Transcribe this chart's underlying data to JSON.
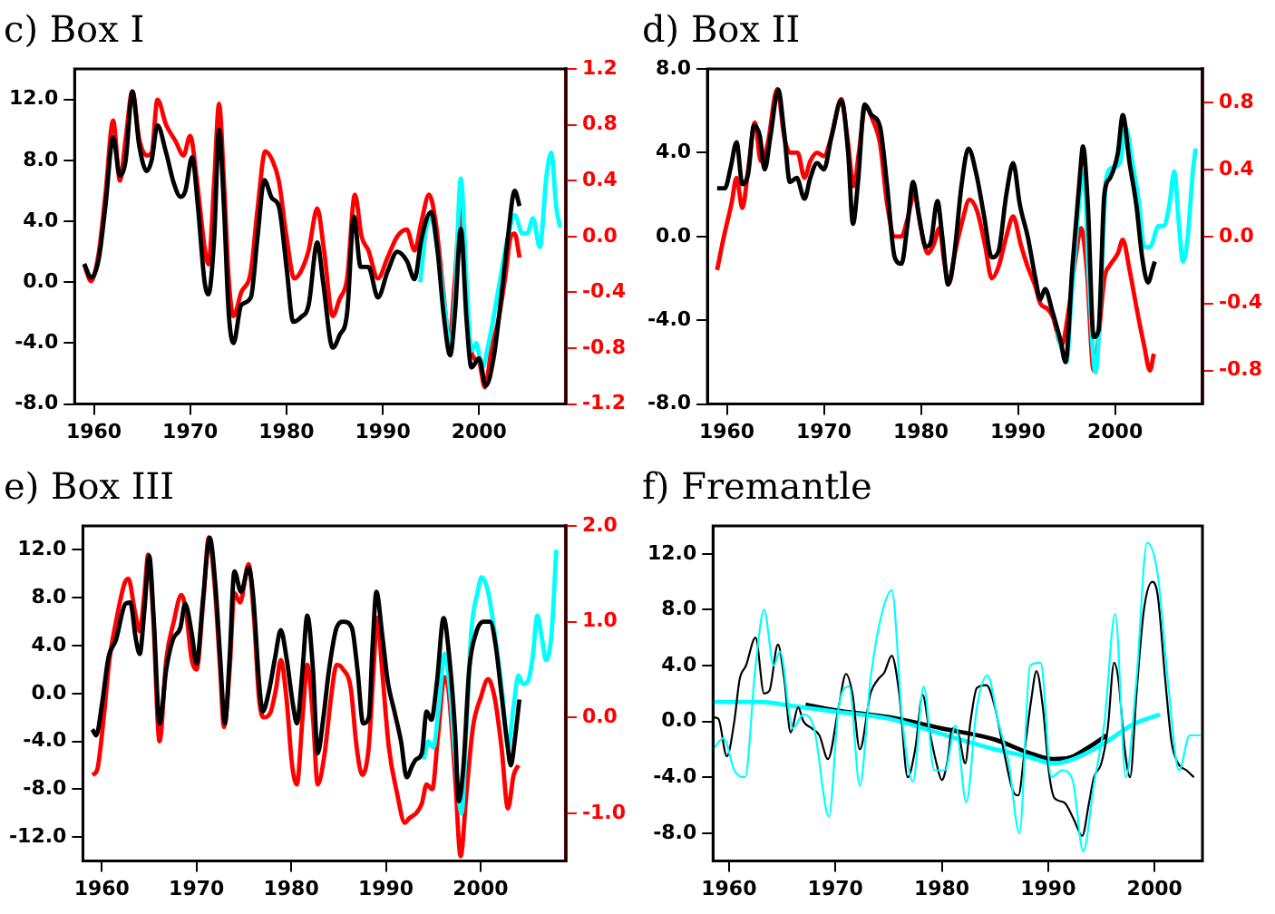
{
  "chart_data": [
    {
      "type": "line",
      "title": "c) Box I",
      "xlim": [
        1958,
        2009
      ],
      "xticks": [
        1960,
        1970,
        1980,
        1990,
        2000
      ],
      "ylim": [
        -8,
        14
      ],
      "yticks": [
        {
          "value": -8,
          "label": "-8.0"
        },
        {
          "value": -4,
          "label": "-4.0"
        },
        {
          "value": 0,
          "label": "0.0"
        },
        {
          "value": 4,
          "label": "4.0"
        },
        {
          "value": 8,
          "label": "8.0"
        },
        {
          "value": 12,
          "label": "12.0"
        }
      ],
      "y2lim": [
        -1.2,
        1.2
      ],
      "y2ticks": [
        {
          "value": -1.2,
          "label": "-1.2"
        },
        {
          "value": -0.8,
          "label": "-0.8"
        },
        {
          "value": -0.4,
          "label": "-0.4"
        },
        {
          "value": 0,
          "label": "0.0"
        },
        {
          "value": 0.4,
          "label": "0.4"
        },
        {
          "value": 0.8,
          "label": "0.8"
        },
        {
          "value": 1.2,
          "label": "1.2"
        }
      ],
      "series": [
        {
          "color": "#000000",
          "x": [
            1959.0,
            1959.7,
            1960.5,
            1961.2,
            1962.0,
            1962.7,
            1963.3,
            1964.0,
            1964.7,
            1965.5,
            1966.0,
            1966.6,
            1967.5,
            1968.3,
            1969.0,
            1969.5,
            1970.2,
            1970.8,
            1971.5,
            1971.9,
            1972.5,
            1973.0,
            1973.5,
            1974.0,
            1974.5,
            1975.3,
            1976.3,
            1977.0,
            1977.7,
            1978.5,
            1979.2,
            1980.0,
            1980.7,
            1981.5,
            1982.3,
            1983.2,
            1983.8,
            1984.8,
            1985.5,
            1986.3,
            1987.0,
            1987.7,
            1988.5,
            1989.5,
            1990.5,
            1991.5,
            1992.5,
            1993.3,
            1994.0,
            1995.0,
            1995.7,
            1996.3,
            1997.0,
            1997.5,
            1998.1,
            1998.7,
            1999.2,
            2000.0,
            2000.7,
            2001.5,
            2002.3,
            2003.0,
            2003.7,
            2004.2
          ],
          "values": [
            1.2,
            0.3,
            1.5,
            5,
            9.5,
            7,
            8,
            12.5,
            9,
            7.3,
            8,
            10.3,
            8.5,
            6.5,
            5.6,
            6,
            8.2,
            5,
            0,
            -0.8,
            3,
            10,
            5,
            -2,
            -4,
            -1.5,
            -1,
            3,
            6.7,
            5.5,
            5,
            1,
            -2.6,
            -2.3,
            -1.5,
            2.6,
            0,
            -4.3,
            -3.5,
            -2,
            4.3,
            1,
            1,
            -1,
            0.7,
            2,
            1.4,
            0.2,
            2.8,
            4.6,
            2,
            -2,
            -4.8,
            -2,
            3.5,
            -2.5,
            -5.6,
            -5,
            -6.8,
            -5,
            -1,
            3,
            6,
            5
          ]
        },
        {
          "color": "#00ffff",
          "x": [
            1993.9,
            1994.5,
            1995.0,
            1995.7,
            1996.5,
            1997.0,
            1997.5,
            1998.1,
            1998.7,
            1999.2,
            1999.7,
            2000.3,
            2001.0,
            2002.0,
            2003.0,
            2003.7,
            2004.5,
            2005.0,
            2005.6,
            2006.3,
            2007.0,
            2007.5,
            2008.0,
            2008.4
          ],
          "values": [
            0,
            3.5,
            4.3,
            2,
            -2,
            -4.3,
            -1,
            6.8,
            0,
            -4.5,
            -4,
            -5.6,
            -4,
            -0.5,
            3,
            4.4,
            3.2,
            3.2,
            4.2,
            2.3,
            7,
            8.5,
            5,
            3.6
          ]
        },
        {
          "color": "#ff0000",
          "axis": "y2",
          "x": [
            1959.0,
            1959.7,
            1960.5,
            1961.2,
            1962.0,
            1962.7,
            1963.3,
            1964.0,
            1964.7,
            1965.5,
            1966.0,
            1966.6,
            1967.5,
            1968.5,
            1969.3,
            1970.0,
            1970.7,
            1971.5,
            1971.9,
            1972.5,
            1973.0,
            1973.5,
            1974.0,
            1974.5,
            1975.3,
            1976.3,
            1977.0,
            1977.8,
            1978.5,
            1979.2,
            1980.0,
            1980.8,
            1981.5,
            1982.3,
            1983.2,
            1983.9,
            1984.8,
            1985.5,
            1986.3,
            1987.1,
            1987.8,
            1988.5,
            1989.5,
            1990.5,
            1991.5,
            1992.5,
            1993.3,
            1994.0,
            1994.8,
            1995.5,
            1996.3,
            1996.9,
            1997.5,
            1998.1,
            1998.7,
            1999.3,
            2000.0,
            2000.6,
            2001.3,
            2002.0,
            2002.7,
            2003.3,
            2003.7,
            2004.2
          ],
          "values": [
            -0.2,
            -0.32,
            -0.12,
            0.3,
            0.83,
            0.4,
            0.7,
            1.04,
            0.7,
            0.58,
            0.6,
            0.98,
            0.8,
            0.68,
            0.58,
            0.72,
            0.4,
            -0.08,
            -0.2,
            0.4,
            0.95,
            0.4,
            -0.3,
            -0.57,
            -0.4,
            -0.25,
            0.2,
            0.61,
            0.55,
            0.4,
            0,
            -0.3,
            -0.25,
            -0.1,
            0.2,
            -0.1,
            -0.57,
            -0.45,
            -0.3,
            0.3,
            0,
            -0.1,
            -0.3,
            -0.15,
            0,
            0.05,
            -0.1,
            0.1,
            0.3,
            0.1,
            -0.4,
            -0.75,
            -0.3,
            0.2,
            -0.5,
            -0.85,
            -0.9,
            -1.08,
            -0.8,
            -0.6,
            -0.3,
            0,
            0.02,
            -0.15
          ]
        }
      ]
    },
    {
      "type": "line",
      "title": "d) Box II",
      "xlim": [
        1958,
        2009
      ],
      "xticks": [
        1960,
        1970,
        1980,
        1990,
        2000
      ],
      "ylim": [
        -8,
        8
      ],
      "yticks": [
        {
          "value": -8,
          "label": "-8.0"
        },
        {
          "value": -4,
          "label": "-4.0"
        },
        {
          "value": 0,
          "label": "0.0"
        },
        {
          "value": 4,
          "label": "4.0"
        },
        {
          "value": 8,
          "label": "8.0"
        }
      ],
      "y2lim": [
        -1,
        1
      ],
      "y2ticks": [
        {
          "value": -0.8,
          "label": "-0.8"
        },
        {
          "value": -0.4,
          "label": "-0.4"
        },
        {
          "value": 0,
          "label": "0.0"
        },
        {
          "value": 0.4,
          "label": "0.4"
        },
        {
          "value": 0.8,
          "label": "0.8"
        }
      ],
      "series": [
        {
          "color": "#000000",
          "x": [
            1959.0,
            1959.8,
            1960.4,
            1961.0,
            1961.6,
            1962.2,
            1962.8,
            1963.4,
            1963.9,
            1964.5,
            1965.3,
            1965.9,
            1966.5,
            1967.2,
            1968.0,
            1968.6,
            1969.3,
            1970.0,
            1970.8,
            1971.8,
            1972.5,
            1973.0,
            1973.5,
            1974.2,
            1974.9,
            1975.8,
            1976.5,
            1977.3,
            1978.0,
            1978.6,
            1979.2,
            1979.8,
            1980.5,
            1981.0,
            1981.7,
            1982.2,
            1982.8,
            1983.4,
            1984.2,
            1984.9,
            1985.7,
            1986.5,
            1987.3,
            1988.0,
            1988.8,
            1989.5,
            1990.2,
            1991.0,
            1991.8,
            1992.3,
            1992.8,
            1993.5,
            1994.4,
            1994.9,
            1995.6,
            1996.4,
            1996.7,
            1997.2,
            1997.8,
            1998.3,
            1998.9,
            1999.5,
            2000.3,
            2000.8,
            2001.5,
            2002.2,
            2002.8,
            2003.4,
            2003.9,
            2004.1
          ],
          "values": [
            2.3,
            2.3,
            3.3,
            4.5,
            2.5,
            3,
            5.3,
            4.8,
            3.2,
            4.8,
            7,
            5,
            2.6,
            2.8,
            1.8,
            2.8,
            3.5,
            3.2,
            4.8,
            6.5,
            4,
            0.6,
            2.5,
            6.3,
            5.8,
            5.2,
            2.5,
            -1,
            -1.3,
            0.5,
            2.6,
            1,
            -0.5,
            -0.3,
            1.7,
            0,
            -2.3,
            -1,
            2.5,
            4.2,
            3,
            1,
            -1,
            -0.7,
            2,
            3.5,
            1.5,
            0,
            -2,
            -3,
            -2.5,
            -3.5,
            -5,
            -6,
            -1.5,
            3,
            4.3,
            1.5,
            -4.8,
            -4.5,
            2,
            2.8,
            4,
            5.8,
            3.5,
            1.5,
            -1,
            -2.2,
            -1.5,
            -1.2
          ]
        },
        {
          "color": "#00ffff",
          "x": [
            1994.0,
            1994.6,
            1995.0,
            1995.5,
            1996.4,
            1996.8,
            1997.3,
            1998.0,
            1998.6,
            1999.1,
            1999.8,
            2000.5,
            2001.1,
            2001.8,
            2002.5,
            2003.0,
            2003.6,
            2004.5,
            2005.0,
            2005.6,
            2006.1,
            2006.6,
            2007.0,
            2007.5,
            2008.0,
            2008.3
          ],
          "values": [
            -4.5,
            -5.5,
            -6,
            -3,
            2,
            3,
            -2,
            -6.5,
            -2,
            2.8,
            3.3,
            3.5,
            5.2,
            3.5,
            1.5,
            -0.5,
            -0.5,
            0.5,
            0.5,
            1.5,
            3.1,
            0.5,
            -1.2,
            0,
            3,
            4.2
          ]
        },
        {
          "color": "#ff0000",
          "axis": "y2",
          "x": [
            1959.0,
            1959.7,
            1960.5,
            1961.0,
            1961.6,
            1962.2,
            1962.9,
            1963.5,
            1964.2,
            1965.2,
            1965.9,
            1966.5,
            1967.3,
            1968.0,
            1968.6,
            1969.3,
            1970.0,
            1970.8,
            1971.8,
            1972.4,
            1973.1,
            1973.6,
            1974.3,
            1975.0,
            1975.8,
            1976.5,
            1977.3,
            1978.0,
            1978.6,
            1979.3,
            1980.0,
            1980.7,
            1981.3,
            1981.9,
            1982.4,
            1982.9,
            1983.5,
            1984.3,
            1985.0,
            1985.8,
            1986.6,
            1987.3,
            1988.0,
            1988.8,
            1989.5,
            1990.3,
            1991.0,
            1991.8,
            1992.3,
            1993.0,
            1993.6,
            1994.5,
            1995.2,
            1996.0,
            1996.5,
            1997.1,
            1997.8,
            1998.3,
            1998.9,
            1999.5,
            2000.3,
            2000.8,
            2001.5,
            2002.3,
            2003.0,
            2003.6,
            2004.0
          ],
          "values": [
            -0.2,
            0,
            0.2,
            0.35,
            0.17,
            0.4,
            0.68,
            0.45,
            0.55,
            0.88,
            0.6,
            0.5,
            0.5,
            0.35,
            0.45,
            0.5,
            0.48,
            0.6,
            0.82,
            0.6,
            0.3,
            0.5,
            0.78,
            0.7,
            0.55,
            0.2,
            0,
            0,
            0.1,
            0.25,
            0.05,
            -0.1,
            -0.05,
            0.05,
            -0.15,
            -0.28,
            -0.1,
            0.1,
            0.22,
            0.15,
            -0.05,
            -0.25,
            -0.18,
            0,
            0.12,
            -0.05,
            -0.18,
            -0.3,
            -0.4,
            -0.43,
            -0.48,
            -0.65,
            -0.45,
            -0.1,
            0.05,
            -0.2,
            -0.8,
            -0.6,
            -0.25,
            -0.17,
            -0.1,
            -0.02,
            -0.2,
            -0.45,
            -0.65,
            -0.8,
            -0.7
          ]
        }
      ]
    },
    {
      "type": "line",
      "title": "e) Box III",
      "xlim": [
        1958,
        2009
      ],
      "xticks": [
        1960,
        1970,
        1980,
        1990,
        2000
      ],
      "ylim": [
        -14,
        14
      ],
      "yticks": [
        {
          "value": -12,
          "label": "-12.0"
        },
        {
          "value": -8,
          "label": "-8.0"
        },
        {
          "value": -4,
          "label": "-4.0"
        },
        {
          "value": 0,
          "label": "0.0"
        },
        {
          "value": 4,
          "label": "4.0"
        },
        {
          "value": 8,
          "label": "8.0"
        },
        {
          "value": 12,
          "label": "12.0"
        }
      ],
      "y2lim": [
        -1.5,
        2
      ],
      "y2ticks": [
        {
          "value": -1,
          "label": "-1.0"
        },
        {
          "value": 0,
          "label": "0.0"
        },
        {
          "value": 1,
          "label": "1.0"
        },
        {
          "value": 2,
          "label": "2.0"
        }
      ],
      "series": [
        {
          "color": "#000000",
          "x": [
            1959.0,
            1959.4,
            1960.0,
            1960.7,
            1961.5,
            1962.5,
            1963.0,
            1963.6,
            1964.0,
            1964.5,
            1965.0,
            1965.5,
            1966.1,
            1966.8,
            1967.5,
            1968.3,
            1968.8,
            1969.5,
            1970.0,
            1970.7,
            1971.4,
            1972.0,
            1972.5,
            1973.0,
            1973.5,
            1974.0,
            1974.7,
            1975.5,
            1976.0,
            1976.6,
            1977.0,
            1977.6,
            1978.3,
            1978.9,
            1979.5,
            1980.2,
            1980.6,
            1981.2,
            1981.7,
            1982.3,
            1982.8,
            1983.4,
            1984.0,
            1984.8,
            1985.5,
            1986.4,
            1987.0,
            1987.6,
            1988.2,
            1988.6,
            1989.0,
            1989.6,
            1990.2,
            1990.9,
            1991.6,
            1992.2,
            1992.8,
            1993.2,
            1993.8,
            1994.3,
            1994.8,
            1995.4,
            1996.1,
            1996.7,
            1997.3,
            1997.7,
            1998.2,
            1998.8,
            1999.5,
            2000.3,
            2001.0,
            2001.6,
            2002.2,
            2002.8,
            2003.2,
            2003.6,
            2004.1
          ],
          "values": [
            -3,
            -3.5,
            -1,
            3,
            4.5,
            7.5,
            7.6,
            4.5,
            3.3,
            7,
            11.5,
            6,
            -2.5,
            2,
            4.5,
            5.5,
            7.5,
            5,
            2.5,
            8,
            13,
            9,
            3,
            -2.5,
            3,
            10.2,
            8.5,
            10.5,
            8,
            1,
            -1.5,
            0,
            3,
            5.3,
            3,
            -1,
            -2.5,
            2,
            6.5,
            2,
            -5,
            -2,
            2,
            5.5,
            6,
            5.5,
            2,
            -2.5,
            -2,
            4,
            8.5,
            5,
            1,
            -1.5,
            -4,
            -7,
            -6,
            -5.5,
            -5,
            -1.5,
            -2.2,
            1,
            6.3,
            3,
            -3,
            -9,
            -6,
            2,
            5,
            6,
            6,
            4,
            0,
            -4,
            -6,
            -4,
            -0.5
          ]
        },
        {
          "color": "#00ffff",
          "x": [
            1994.0,
            1994.5,
            1995.0,
            1995.6,
            1996.2,
            1996.8,
            1997.3,
            1998.0,
            1998.5,
            1999.0,
            1999.7,
            2000.1,
            2000.8,
            2001.5,
            2002.3,
            2002.9,
            2003.5,
            2004.0,
            2004.5,
            2005.0,
            2005.5,
            2006.0,
            2006.5,
            2006.9,
            2007.5,
            2008.0
          ],
          "values": [
            -5.5,
            -4,
            -4.5,
            -1,
            3.3,
            0,
            -5,
            -10,
            -3,
            5,
            8.5,
            9.7,
            8.5,
            5,
            0,
            -4.5,
            -1,
            1.5,
            0.8,
            1,
            3,
            6.5,
            4.5,
            2.8,
            5,
            12
          ]
        },
        {
          "color": "#ff0000",
          "axis": "y2",
          "x": [
            1959.0,
            1959.5,
            1960.2,
            1960.8,
            1961.5,
            1962.4,
            1962.8,
            1963.5,
            1964.0,
            1964.5,
            1964.9,
            1965.4,
            1966.1,
            1966.8,
            1967.6,
            1968.4,
            1968.9,
            1969.5,
            1970.0,
            1970.7,
            1971.3,
            1971.9,
            1972.5,
            1972.9,
            1973.5,
            1974.0,
            1974.6,
            1975.5,
            1976.1,
            1976.6,
            1977.1,
            1977.8,
            1978.4,
            1978.9,
            1979.5,
            1980.1,
            1980.6,
            1981.2,
            1981.7,
            1982.3,
            1982.8,
            1983.5,
            1984.2,
            1984.8,
            1985.5,
            1986.3,
            1986.9,
            1987.5,
            1988.2,
            1988.7,
            1989.1,
            1989.6,
            1990.3,
            1991.2,
            1992.0,
            1992.5,
            1993.2,
            1993.8,
            1994.3,
            1994.9,
            1995.5,
            1996.2,
            1996.6,
            1997.3,
            1997.9,
            1998.5,
            1999.2,
            2000.0,
            2000.8,
            2001.5,
            2002.2,
            2002.9,
            2003.5,
            2004.0
          ],
          "values": [
            -0.6,
            -0.55,
            0,
            0.6,
            1,
            1.4,
            1.45,
            1.1,
            0.9,
            1.3,
            1.7,
            1.1,
            -0.25,
            0.6,
            1,
            1.28,
            1.1,
            0.6,
            0.5,
            1.2,
            1.88,
            1.4,
            0.5,
            -0.1,
            0.5,
            1.3,
            1.2,
            1.6,
            1,
            0.2,
            0,
            0.05,
            0.3,
            0.6,
            0.2,
            -0.5,
            -0.7,
            0,
            0.55,
            0,
            -0.7,
            -0.4,
            0.2,
            0.55,
            0.5,
            0.3,
            -0.3,
            -0.6,
            -0.3,
            0.5,
            1.04,
            0.5,
            -0.3,
            -0.8,
            -1.1,
            -1.05,
            -1,
            -0.9,
            -0.7,
            -0.75,
            -0.2,
            0.42,
            0.3,
            -0.6,
            -1.45,
            -0.8,
            -0.1,
            0.2,
            0.4,
            0.2,
            -0.3,
            -0.95,
            -0.6,
            -0.5
          ]
        }
      ]
    },
    {
      "type": "line",
      "title": "f) Fremantle",
      "xlim": [
        1958.5,
        2004.5
      ],
      "xticks": [
        1960,
        1970,
        1980,
        1990,
        2000
      ],
      "ylim": [
        -10,
        14
      ],
      "yticks": [
        {
          "value": -8,
          "label": "-8.0"
        },
        {
          "value": -4,
          "label": "-4.0"
        },
        {
          "value": 0,
          "label": "0.0"
        },
        {
          "value": 4,
          "label": "4.0"
        },
        {
          "value": 8,
          "label": "8.0"
        },
        {
          "value": 12,
          "label": "12.0"
        }
      ],
      "series": [
        {
          "color": "#00ffff",
          "x": [
            1958.5,
            1959.5,
            1960.5,
            1961.5,
            1962.5,
            1963.3,
            1964.2,
            1964.8,
            1966.0,
            1967.0,
            1968.0,
            1969.4,
            1970.3,
            1971.3,
            1972.3,
            1973.3,
            1974.3,
            1975.3,
            1976.3,
            1977.3,
            1978.3,
            1979.3,
            1980.3,
            1981.3,
            1982.3,
            1983.3,
            1984.3,
            1985.3,
            1986.3,
            1987.3,
            1988.3,
            1989.3,
            1990.3,
            1991.3,
            1992.3,
            1993.3,
            1994.3,
            1995.3,
            1996.3,
            1997.3,
            1998.3,
            1999.3,
            2000.3,
            2001.3,
            2002.3,
            2003.3,
            2004.3
          ],
          "values": [
            -2,
            -1.2,
            -3.5,
            -4,
            4,
            8,
            4,
            5,
            -0.5,
            0.5,
            -0.5,
            -6.8,
            1,
            2.5,
            -4.6,
            3,
            7.5,
            9.4,
            0,
            -4.3,
            2.5,
            -3.5,
            -3.5,
            -0.3,
            -5.8,
            1,
            3.3,
            0,
            -3,
            -8,
            4,
            4.2,
            -4,
            -3.5,
            -4.2,
            -9.3,
            -4.5,
            0,
            7.7,
            -4,
            3,
            12.8,
            10.5,
            2.5,
            -3.5,
            -1,
            -1
          ]
        },
        {
          "color": "#000000",
          "x": [
            1958.5,
            1959.0,
            1959.8,
            1960.5,
            1961.0,
            1961.6,
            1962.5,
            1963.3,
            1963.8,
            1964.6,
            1965.2,
            1965.8,
            1966.5,
            1967.0,
            1967.8,
            1968.5,
            1969.3,
            1970.3,
            1971.0,
            1971.6,
            1972.3,
            1973.3,
            1974.0,
            1974.6,
            1975.3,
            1976.0,
            1976.8,
            1977.5,
            1978.2,
            1978.8,
            1979.5,
            1980.0,
            1980.5,
            1981.0,
            1981.6,
            1982.2,
            1982.7,
            1983.3,
            1984.2,
            1985.0,
            1985.8,
            1986.7,
            1987.2,
            1987.8,
            1988.4,
            1988.9,
            1989.5,
            1990.1,
            1990.6,
            1991.5,
            1992.4,
            1993.2,
            1993.8,
            1994.3,
            1995.0,
            1995.6,
            1996.2,
            1996.6,
            1997.2,
            1997.7,
            1998.3,
            1999.0,
            1999.8,
            2000.3,
            2001.0,
            2001.6,
            2002.2,
            2003.0,
            2003.7
          ],
          "values": [
            0.3,
            0.2,
            -2.5,
            0,
            3,
            4,
            6,
            2,
            2.2,
            5.5,
            3,
            -0.8,
            1,
            0,
            -0.5,
            -1,
            -2.7,
            1,
            3.4,
            2,
            -2,
            2,
            3,
            3.5,
            4.7,
            2,
            -4,
            -2,
            1.9,
            -0.5,
            -3,
            -4.2,
            -3,
            -0.5,
            -1,
            -3,
            0,
            2.4,
            2.6,
            1,
            -2,
            -5,
            -5.3,
            -2,
            1.5,
            3.6,
            1,
            -3.8,
            -5.5,
            -5.8,
            -7,
            -8.2,
            -6,
            -4,
            -3,
            -0.5,
            4.2,
            3,
            -2,
            -4,
            2,
            8,
            10,
            9,
            3,
            -1.5,
            -3,
            -3.5,
            -4
          ]
        },
        {
          "color": "#00ffff",
          "x": [
            1958.5,
            1960,
            1963,
            1966,
            1970,
            1975,
            1980,
            1985,
            1988,
            1990.5,
            1992,
            1995,
            1998,
            2000.5
          ],
          "values": [
            1.4,
            1.4,
            1.4,
            1.1,
            0.7,
            0.2,
            -0.9,
            -2,
            -2.5,
            -3,
            -2.8,
            -1.7,
            -0.2,
            0.5
          ]
        },
        {
          "color": "#000000",
          "x": [
            1967.2,
            1970,
            1975,
            1980,
            1985,
            1988,
            1990.5,
            1992,
            1993.5,
            1995.5
          ],
          "values": [
            1.2,
            0.8,
            0.3,
            -0.5,
            -1.3,
            -2.2,
            -2.7,
            -2.6,
            -2,
            -1
          ]
        }
      ]
    }
  ]
}
